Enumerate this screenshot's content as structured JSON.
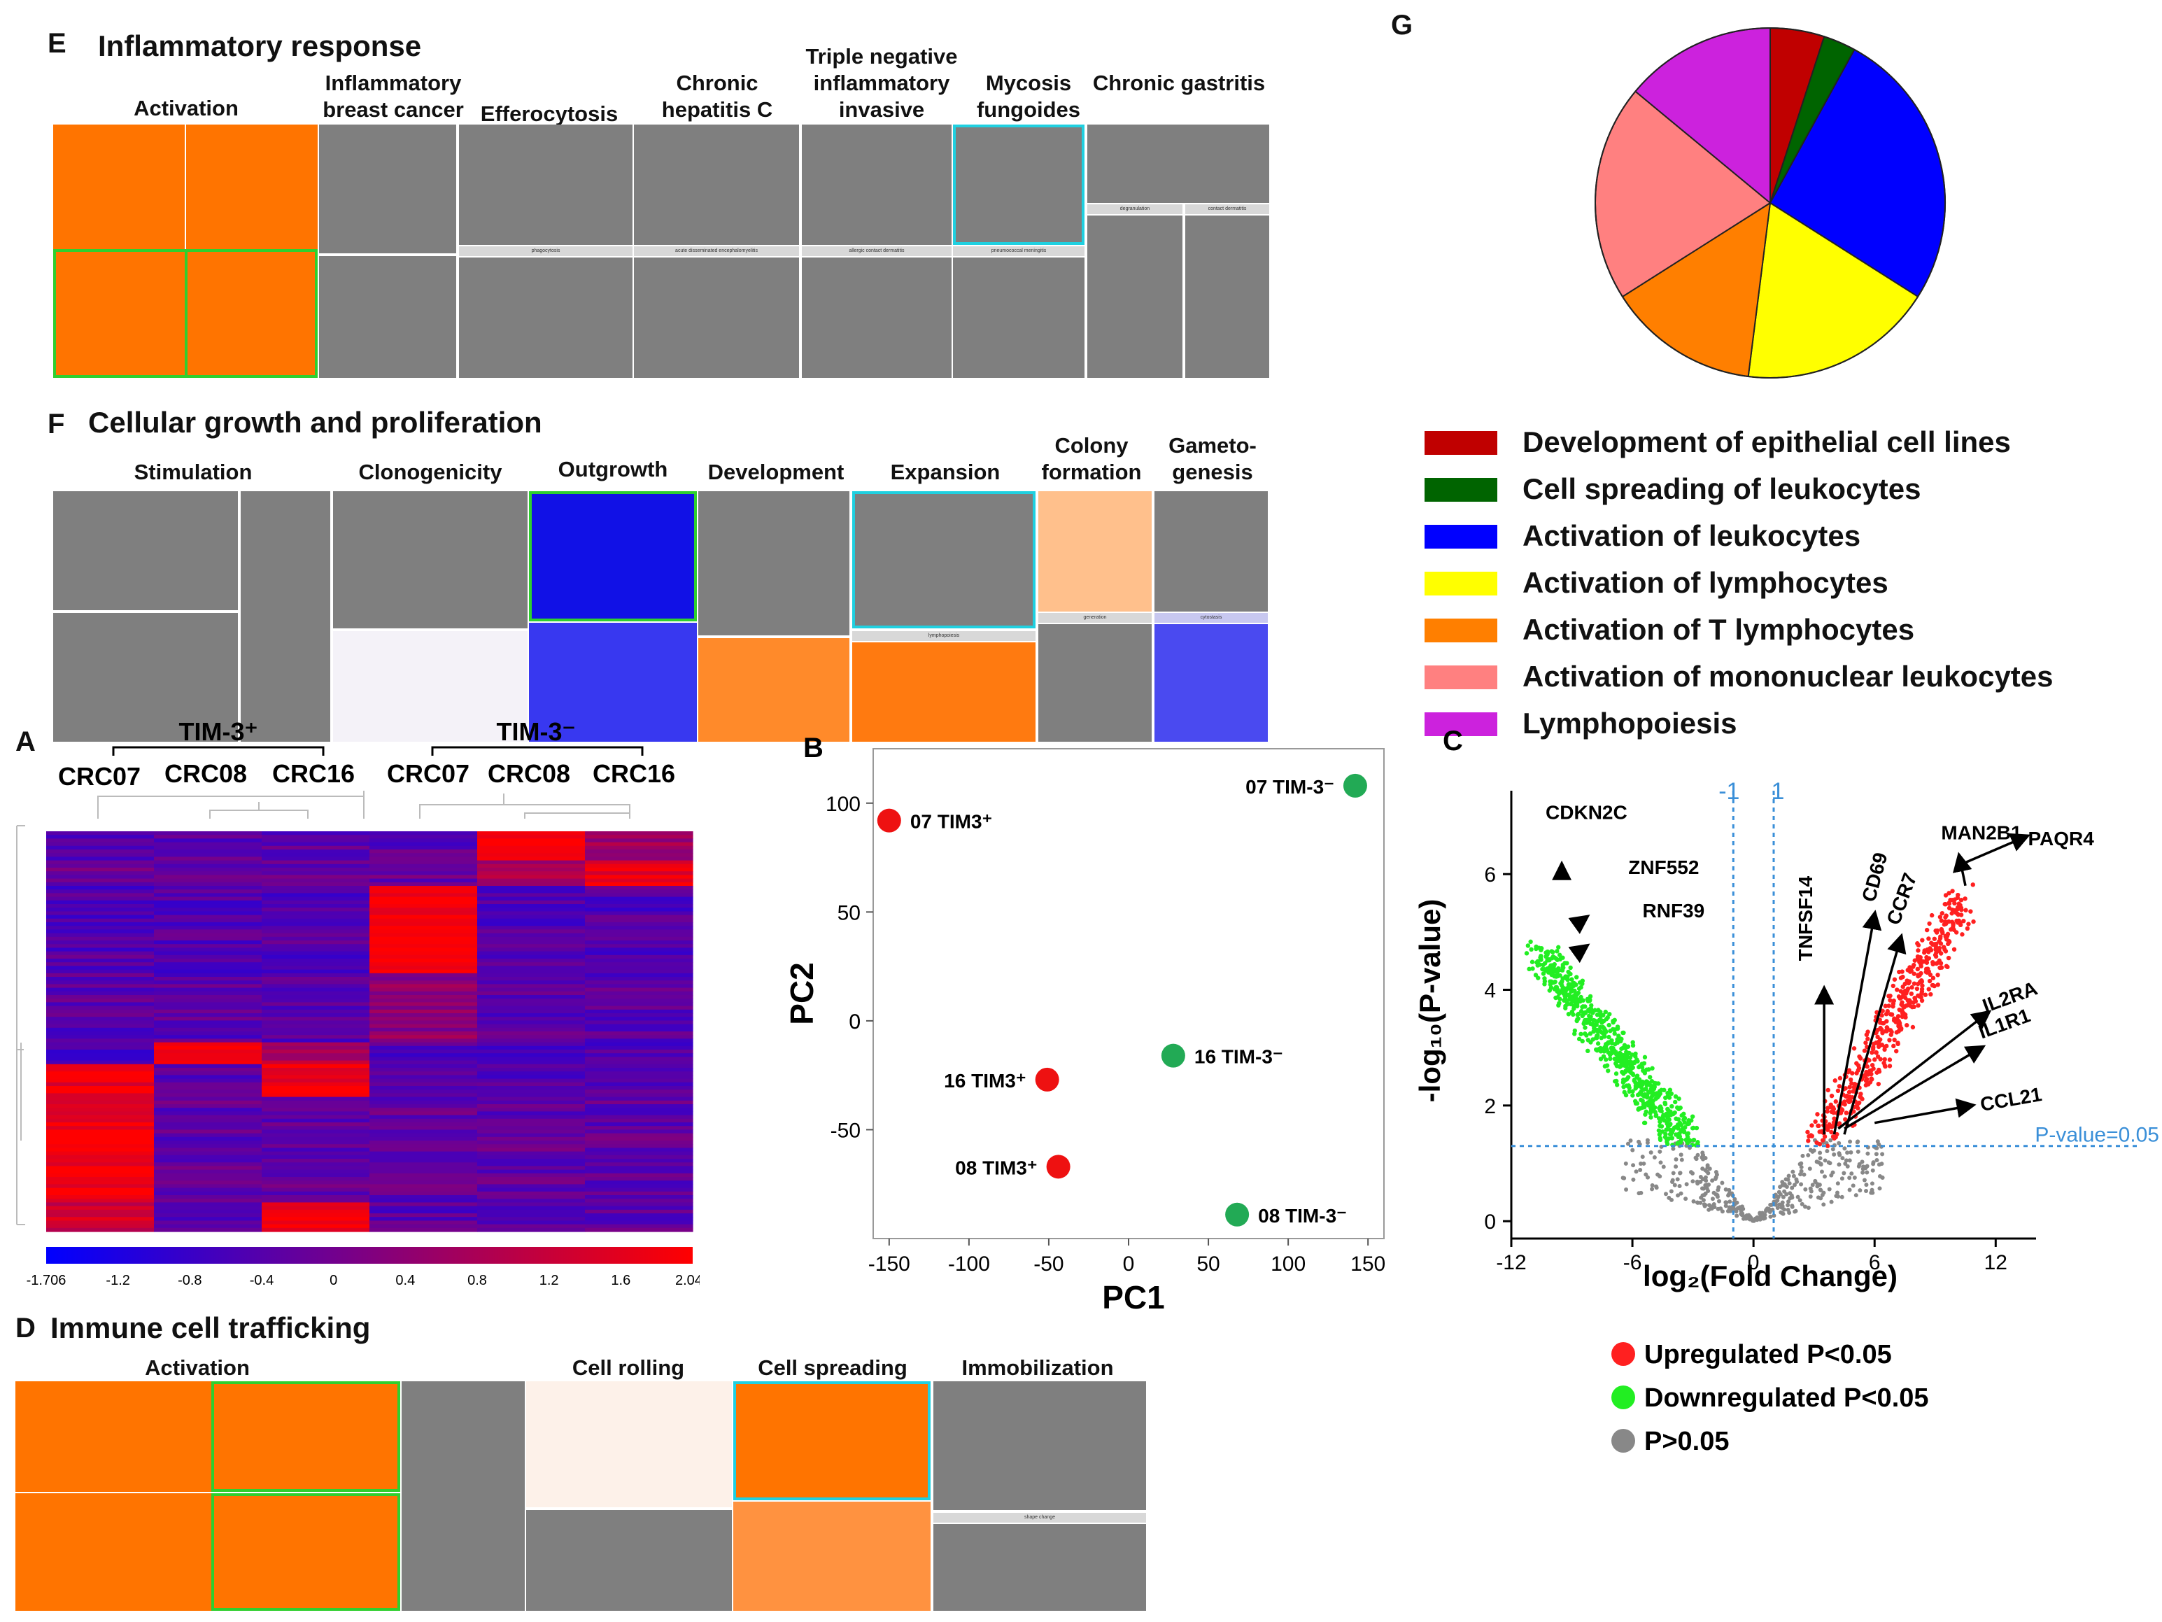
{
  "panelE": {
    "letter": "E",
    "title": "Inflammatory response",
    "categories": [
      "Activation",
      "Inflammatory breast cancer",
      "Efferocytosis",
      "Chronic hepatitis C",
      "Triple negative inflammatory invasive",
      "Mycosis fungoides",
      "Chronic gastritis"
    ],
    "strips": [
      "phagocytosis",
      "acute disseminated encephalomyelitis",
      "allergic contact dermatitis",
      "pneumococcal meningitis",
      "degranulation",
      "contact dermatitis"
    ]
  },
  "panelF": {
    "letter": "F",
    "title": "Cellular growth and proliferation",
    "categories": [
      "Stimulation",
      "Clonogenicity",
      "Outgrowth",
      "Development",
      "Expansion",
      "Colony formation",
      "Gameto- genesis"
    ],
    "strips": [
      "lymphopoiesis",
      "generation",
      "cytostasis"
    ]
  },
  "panelD": {
    "letter": "D",
    "title": "Immune cell trafficking",
    "categories": [
      "Activation",
      "Cell rolling",
      "Cell spreading",
      "Immobilization"
    ],
    "strips": [
      "shape change"
    ]
  },
  "panelA": {
    "letter": "A",
    "group_left": "TIM-3⁺",
    "group_right": "TIM-3⁻",
    "columns": [
      "CRC07",
      "CRC08",
      "CRC16",
      "CRC07",
      "CRC08",
      "CRC16"
    ],
    "scale_ticks": [
      "-1.706",
      "-1.2",
      "-0.8",
      "-0.4",
      "0",
      "0.4",
      "0.8",
      "1.2",
      "1.6",
      "2.041"
    ],
    "colors": {
      "low": "#0000ff",
      "mid": "#800080",
      "high": "#ff0000"
    }
  },
  "panelG": {
    "letter": "G",
    "chart_data": {
      "type": "pie",
      "slices": [
        {
          "label": "Development of epithelial cell lines",
          "value": 5,
          "color": "#c00000"
        },
        {
          "label": "Cell spreading of leukocytes",
          "value": 3,
          "color": "#006400"
        },
        {
          "label": "Activation of leukocytes",
          "value": 26,
          "color": "#0000ff"
        },
        {
          "label": "Activation of lymphocytes",
          "value": 18,
          "color": "#ffff00"
        },
        {
          "label": "Activation of T lymphocytes",
          "value": 14,
          "color": "#ff7f00"
        },
        {
          "label": "Activation of mononuclear leukocytes",
          "value": 20,
          "color": "#ff8080"
        },
        {
          "label": "Lymphopoiesis",
          "value": 14,
          "color": "#cc22dd"
        }
      ]
    }
  },
  "panelB": {
    "letter": "B",
    "chart_data": {
      "type": "scatter",
      "xlabel": "PC1",
      "ylabel": "PC2",
      "xlim": [
        -160,
        160
      ],
      "ylim": [
        -100,
        125
      ],
      "xticks": [
        -150,
        -100,
        -50,
        0,
        50,
        100,
        150
      ],
      "yticks": [
        -50,
        0,
        50,
        100
      ],
      "points": [
        {
          "label": "07 TIM3⁺",
          "x": -150,
          "y": 92,
          "color": "#ee1111",
          "label_side": "right"
        },
        {
          "label": "16 TIM3⁺",
          "x": -51,
          "y": -27,
          "color": "#ee1111",
          "label_side": "left"
        },
        {
          "label": "08 TIM3⁺",
          "x": -44,
          "y": -67,
          "color": "#ee1111",
          "label_side": "left"
        },
        {
          "label": "07 TIM-3⁻",
          "x": 142,
          "y": 108,
          "color": "#22aa55",
          "label_side": "left"
        },
        {
          "label": "16 TIM-3⁻",
          "x": 28,
          "y": -16,
          "color": "#22aa55",
          "label_side": "right"
        },
        {
          "label": "08 TIM-3⁻",
          "x": 68,
          "y": -89,
          "color": "#22aa55",
          "label_side": "right"
        }
      ]
    }
  },
  "panelC": {
    "letter": "C",
    "chart_data": {
      "type": "scatter",
      "xlabel": "log₂(Fold Change)",
      "ylabel": "-log₁₀(P-value)",
      "xlim": [
        -12,
        14
      ],
      "ylim": [
        -0.3,
        7.2
      ],
      "xticks": [
        -12,
        -6,
        0,
        6,
        12
      ],
      "yticks": [
        0,
        2,
        4,
        6
      ],
      "fc_lines": [
        "-1",
        "1"
      ],
      "pvalue_label": "P-value=0.05",
      "pvalue_line_y": 1.3,
      "gene_labels": [
        {
          "gene": "CDKN2C",
          "x": -9.5,
          "y": 6.0
        },
        {
          "gene": "ZNF552",
          "x": -8.5,
          "y": 5.2
        },
        {
          "gene": "RNF39",
          "x": -8.5,
          "y": 4.7
        },
        {
          "gene": "TNFSF14",
          "x": 3.5,
          "y": 1.5
        },
        {
          "gene": "CD69",
          "x": 4.0,
          "y": 1.5
        },
        {
          "gene": "CCR7",
          "x": 4.5,
          "y": 1.5
        },
        {
          "gene": "MAN2B1",
          "x": 10.5,
          "y": 5.8
        },
        {
          "gene": "PAQR4",
          "x": 10.5,
          "y": 6.2
        },
        {
          "gene": "IL2RA",
          "x": 4.2,
          "y": 1.6
        },
        {
          "gene": "IL1R1",
          "x": 4.5,
          "y": 1.6
        },
        {
          "gene": "CCL21",
          "x": 6.0,
          "y": 1.7
        }
      ],
      "legend": [
        {
          "label": "Upregulated P<0.05",
          "color": "#ff2020"
        },
        {
          "label": "Downregulated P<0.05",
          "color": "#22ee22"
        },
        {
          "label": "P>0.05",
          "color": "#888888"
        }
      ]
    }
  }
}
